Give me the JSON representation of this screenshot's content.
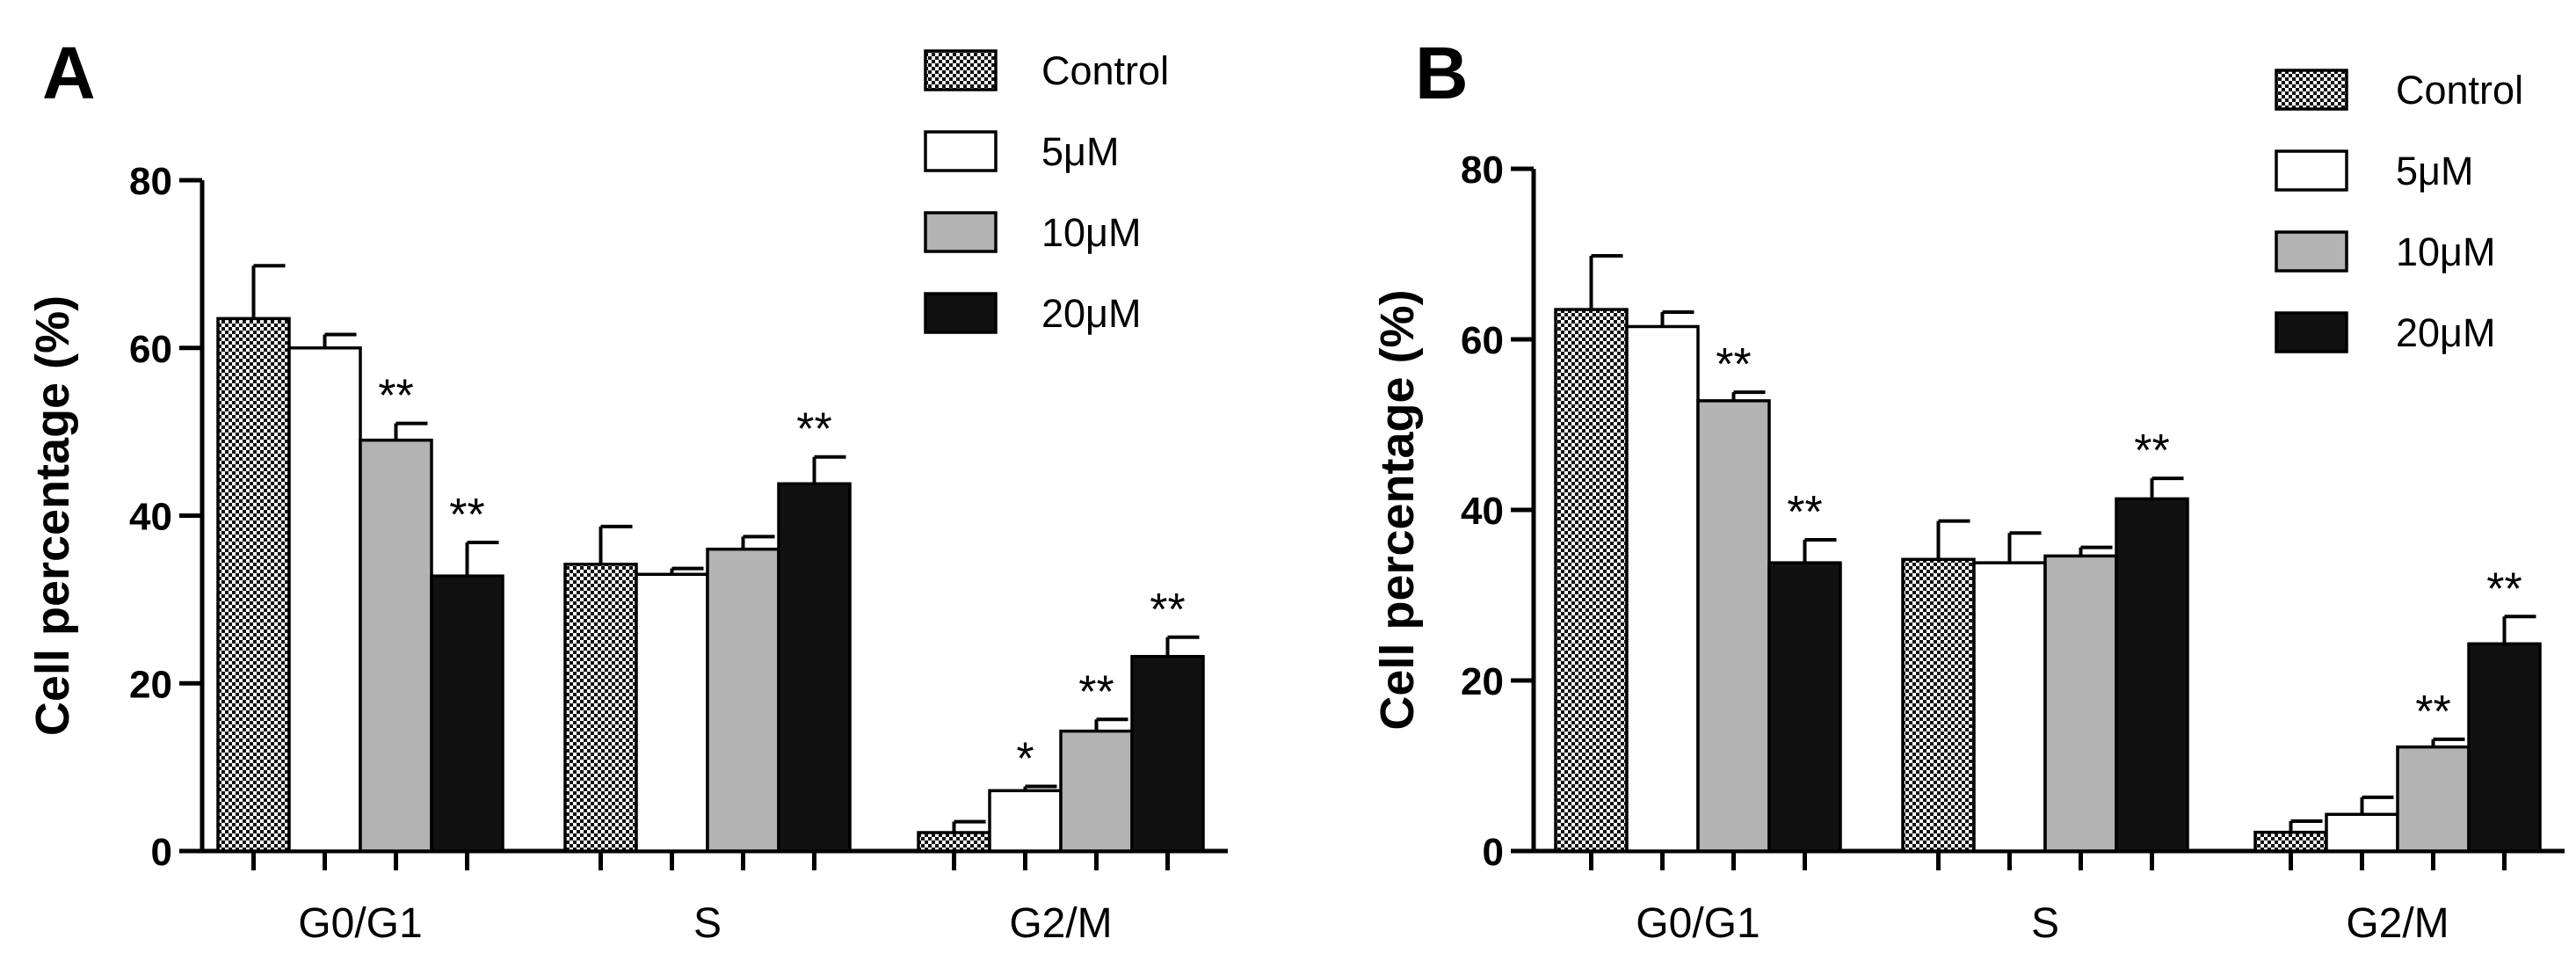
{
  "chart_data": [
    {
      "type": "bar",
      "panel": "A",
      "ylabel": "Cell percentage (%)",
      "ylim": [
        0,
        80
      ],
      "yticks": [
        0,
        20,
        40,
        60,
        80
      ],
      "categories": [
        "G0/G1",
        "S",
        "G2/M"
      ],
      "series": [
        {
          "name": "Control",
          "values": [
            63.5,
            34.2,
            2.2
          ],
          "errors": [
            6.3,
            4.5,
            1.3
          ]
        },
        {
          "name": "5μM",
          "values": [
            60.0,
            33.0,
            7.2
          ],
          "errors": [
            1.6,
            0.7,
            0.5
          ]
        },
        {
          "name": "10μM",
          "values": [
            49.0,
            36.0,
            14.3
          ],
          "errors": [
            2.0,
            1.5,
            1.4
          ]
        },
        {
          "name": "20μM",
          "values": [
            32.8,
            43.8,
            23.2
          ],
          "errors": [
            4.0,
            3.2,
            2.3
          ]
        }
      ],
      "significance": [
        [
          "",
          "",
          ""
        ],
        [
          "",
          "",
          "*"
        ],
        [
          "**",
          "",
          "**"
        ],
        [
          "**",
          "**",
          "**"
        ]
      ]
    },
    {
      "type": "bar",
      "panel": "B",
      "ylabel": "Cell percentage (%)",
      "ylim": [
        0,
        80
      ],
      "yticks": [
        0,
        20,
        40,
        60,
        80
      ],
      "categories": [
        "G0/G1",
        "S",
        "G2/M"
      ],
      "series": [
        {
          "name": "Control",
          "values": [
            63.5,
            34.2,
            2.2
          ],
          "errors": [
            6.3,
            4.5,
            1.3
          ]
        },
        {
          "name": "5μM",
          "values": [
            61.5,
            33.8,
            4.3
          ],
          "errors": [
            1.7,
            3.5,
            2.0
          ]
        },
        {
          "name": "10μM",
          "values": [
            52.8,
            34.6,
            12.2
          ],
          "errors": [
            1.0,
            1.0,
            0.9
          ]
        },
        {
          "name": "20μM",
          "values": [
            33.8,
            41.3,
            24.3
          ],
          "errors": [
            2.7,
            2.4,
            3.2
          ]
        }
      ],
      "significance": [
        [
          "",
          "",
          ""
        ],
        [
          "",
          "",
          ""
        ],
        [
          "**",
          "",
          "**"
        ],
        [
          "**",
          "**",
          "**"
        ]
      ]
    }
  ]
}
